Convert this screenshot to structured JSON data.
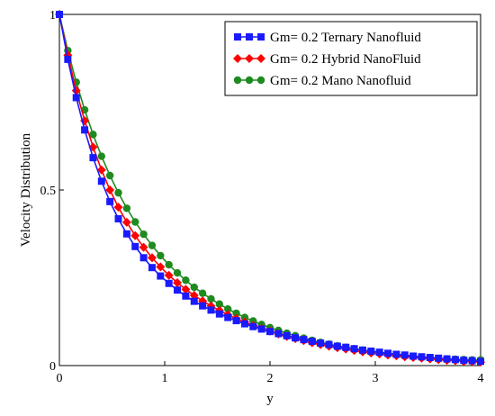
{
  "chart_data": {
    "type": "line",
    "xlabel": "y",
    "ylabel": "Velocity  Distribution",
    "xlim": [
      0,
      4
    ],
    "ylim": [
      0,
      1
    ],
    "xticks": [
      "0",
      "1",
      "2",
      "3",
      "4"
    ],
    "yticks": [
      "0",
      "0.5",
      "1"
    ],
    "grid": false,
    "legend_position": "top-right",
    "series": [
      {
        "name": "Gm= 0.2 Ternary Nanofluid",
        "color": "#1a1aff",
        "marker": "square",
        "x": [
          0,
          0.08,
          0.16,
          0.24,
          0.32,
          0.4,
          0.48,
          0.56,
          0.64,
          0.72,
          0.8,
          0.88,
          0.96,
          1.04,
          1.12,
          1.2,
          1.28,
          1.36,
          1.44,
          1.52,
          1.6,
          1.68,
          1.76,
          1.84,
          1.92,
          2.0,
          2.08,
          2.16,
          2.24,
          2.32,
          2.4,
          2.48,
          2.56,
          2.64,
          2.72,
          2.8,
          2.88,
          2.96,
          3.04,
          3.12,
          3.2,
          3.28,
          3.36,
          3.44,
          3.52,
          3.6,
          3.68,
          3.76,
          3.84,
          3.92,
          4.0
        ],
        "y": [
          1.0,
          0.872,
          0.763,
          0.671,
          0.592,
          0.525,
          0.467,
          0.418,
          0.375,
          0.339,
          0.307,
          0.279,
          0.255,
          0.234,
          0.215,
          0.198,
          0.183,
          0.17,
          0.158,
          0.147,
          0.137,
          0.128,
          0.119,
          0.111,
          0.104,
          0.097,
          0.091,
          0.085,
          0.079,
          0.074,
          0.069,
          0.064,
          0.06,
          0.055,
          0.052,
          0.048,
          0.044,
          0.041,
          0.038,
          0.035,
          0.032,
          0.03,
          0.027,
          0.025,
          0.023,
          0.021,
          0.019,
          0.017,
          0.015,
          0.014,
          0.012
        ]
      },
      {
        "name": "Gm= 0.2 Hybrid NanoFluid",
        "color": "#ff0000",
        "marker": "diamond",
        "x": [
          0,
          0.08,
          0.16,
          0.24,
          0.32,
          0.4,
          0.48,
          0.56,
          0.64,
          0.72,
          0.8,
          0.88,
          0.96,
          1.04,
          1.12,
          1.2,
          1.28,
          1.36,
          1.44,
          1.52,
          1.6,
          1.68,
          1.76,
          1.84,
          1.92,
          2.0,
          2.08,
          2.16,
          2.24,
          2.32,
          2.4,
          2.48,
          2.56,
          2.64,
          2.72,
          2.8,
          2.88,
          2.96,
          3.04,
          3.12,
          3.2,
          3.28,
          3.36,
          3.44,
          3.52,
          3.6,
          3.68,
          3.76,
          3.84,
          3.92,
          4.0
        ],
        "y": [
          1.0,
          0.884,
          0.783,
          0.697,
          0.622,
          0.557,
          0.5,
          0.451,
          0.408,
          0.37,
          0.337,
          0.307,
          0.281,
          0.257,
          0.236,
          0.217,
          0.2,
          0.184,
          0.17,
          0.157,
          0.145,
          0.134,
          0.124,
          0.114,
          0.106,
          0.098,
          0.09,
          0.083,
          0.077,
          0.071,
          0.065,
          0.06,
          0.055,
          0.051,
          0.047,
          0.043,
          0.039,
          0.036,
          0.033,
          0.03,
          0.028,
          0.025,
          0.023,
          0.021,
          0.019,
          0.017,
          0.015,
          0.014,
          0.012,
          0.011,
          0.01
        ]
      },
      {
        "name": "Gm= 0.2  Mano Nanofluid",
        "color": "#1f8a1f",
        "marker": "circle",
        "x": [
          0,
          0.08,
          0.16,
          0.24,
          0.32,
          0.4,
          0.48,
          0.56,
          0.64,
          0.72,
          0.8,
          0.88,
          0.96,
          1.04,
          1.12,
          1.2,
          1.28,
          1.36,
          1.44,
          1.52,
          1.6,
          1.68,
          1.76,
          1.84,
          1.92,
          2.0,
          2.08,
          2.16,
          2.24,
          2.32,
          2.4,
          2.48,
          2.56,
          2.64,
          2.72,
          2.8,
          2.88,
          2.96,
          3.04,
          3.12,
          3.2,
          3.28,
          3.36,
          3.44,
          3.52,
          3.6,
          3.68,
          3.76,
          3.84,
          3.92,
          4.0
        ],
        "y": [
          1.0,
          0.897,
          0.807,
          0.728,
          0.658,
          0.596,
          0.541,
          0.492,
          0.448,
          0.409,
          0.374,
          0.342,
          0.313,
          0.287,
          0.264,
          0.243,
          0.223,
          0.206,
          0.19,
          0.175,
          0.161,
          0.149,
          0.137,
          0.127,
          0.117,
          0.108,
          0.1,
          0.092,
          0.085,
          0.078,
          0.072,
          0.066,
          0.061,
          0.056,
          0.052,
          0.048,
          0.044,
          0.04,
          0.037,
          0.034,
          0.031,
          0.028,
          0.026,
          0.024,
          0.022,
          0.02,
          0.019,
          0.018,
          0.017,
          0.016,
          0.016
        ]
      }
    ]
  }
}
